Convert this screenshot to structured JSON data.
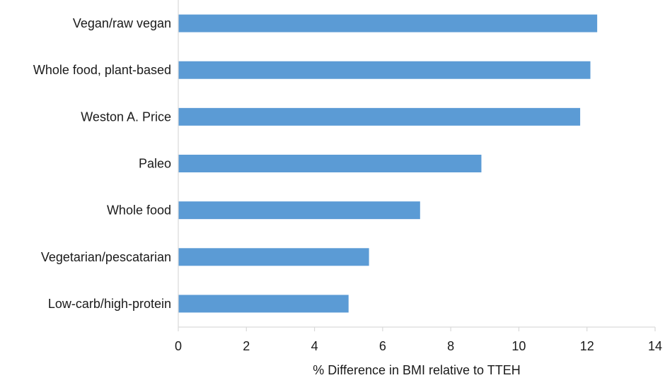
{
  "chart_data": {
    "type": "bar",
    "orientation": "horizontal",
    "categories": [
      "Vegan/raw vegan",
      "Whole food, plant-based",
      "Weston A. Price",
      "Paleo",
      "Whole food",
      "Vegetarian/pescatarian",
      "Low-carb/high-protein"
    ],
    "values": [
      12.3,
      12.1,
      11.8,
      8.9,
      7.1,
      5.6,
      5.0
    ],
    "title": "",
    "xlabel": "% Difference in BMI relative to TTEH",
    "ylabel": "",
    "xlim": [
      0,
      14
    ],
    "xticks": [
      0,
      2,
      4,
      6,
      8,
      10,
      12,
      14
    ],
    "grid": false,
    "legend": "none",
    "bar_color": "#5b9bd5",
    "axis_color": "#d9d9d9"
  }
}
